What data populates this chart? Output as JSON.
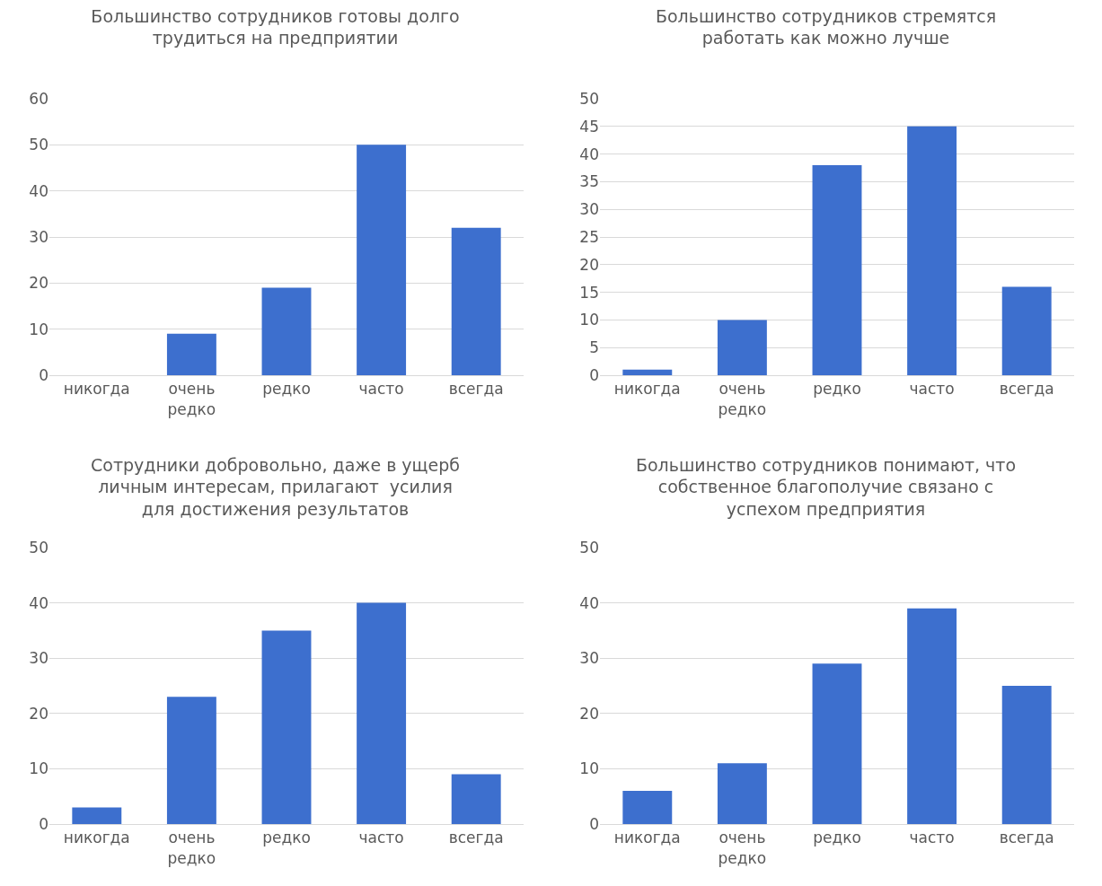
{
  "chart_data": [
    {
      "type": "bar",
      "title": "Большинство сотрудников готовы долго трудиться на предприятии",
      "categories": [
        "никогда",
        "очень редко",
        "редко",
        "часто",
        "всегда"
      ],
      "values": [
        0,
        9,
        19,
        50,
        32
      ],
      "color": "#3d6fce",
      "ylim": [
        0,
        60
      ],
      "yticks": [
        0,
        10,
        20,
        30,
        40,
        50,
        60
      ],
      "grid": "y"
    },
    {
      "type": "bar",
      "title": "Большинство сотрудников стремятся работать как можно лучше",
      "categories": [
        "никогда",
        "очень редко",
        "редко",
        "часто",
        "всегда"
      ],
      "values": [
        1,
        10,
        38,
        45,
        16
      ],
      "color": "#3d6fce",
      "ylim": [
        0,
        50
      ],
      "yticks": [
        0,
        5,
        10,
        15,
        20,
        25,
        30,
        35,
        40,
        45,
        50
      ],
      "grid": "y"
    },
    {
      "type": "bar",
      "title": "Сотрудники добровольно, даже в ущерб личным интересам, прилагают  усилия для достижения результатов",
      "categories": [
        "никогда",
        "очень редко",
        "редко",
        "часто",
        "всегда"
      ],
      "values": [
        3,
        23,
        35,
        40,
        9
      ],
      "color": "#3d6fce",
      "ylim": [
        0,
        50
      ],
      "yticks": [
        0,
        10,
        20,
        30,
        40,
        50
      ],
      "grid": "y"
    },
    {
      "type": "bar",
      "title": "Большинство сотрудников понимают, что собственное благополучие связано с успехом предприятия",
      "categories": [
        "никогда",
        "очень редко",
        "редко",
        "часто",
        "всегда"
      ],
      "values": [
        6,
        11,
        29,
        39,
        25
      ],
      "color": "#3d6fce",
      "ylim": [
        0,
        50
      ],
      "yticks": [
        0,
        10,
        20,
        30,
        40,
        50
      ],
      "grid": "y"
    }
  ]
}
